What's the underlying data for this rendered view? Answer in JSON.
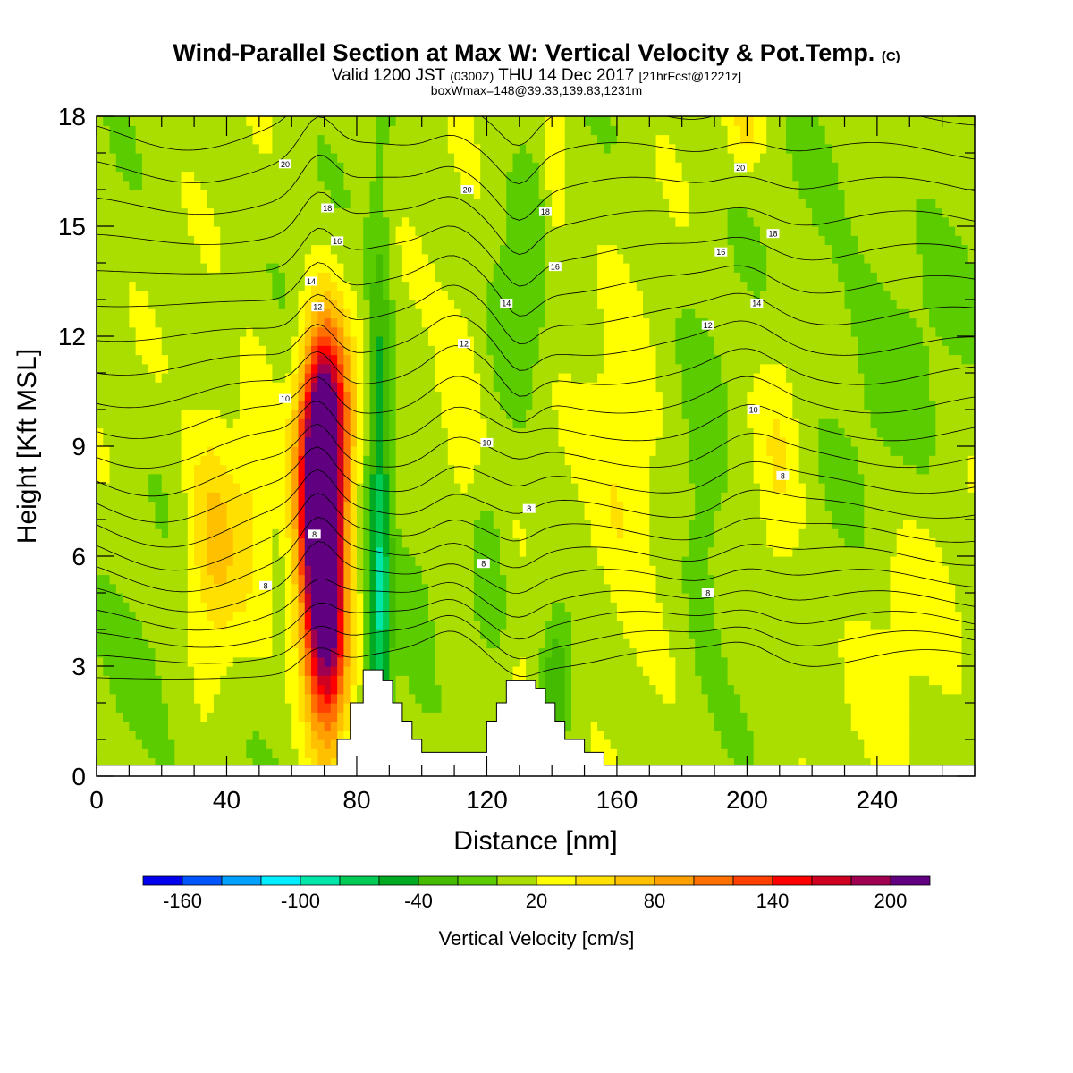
{
  "header": {
    "title_main": "Wind-Parallel Section at Max W: Vertical Velocity & Pot.Temp.",
    "title_copyright": "(C)",
    "valid_prefix": "Valid 1200 JST",
    "valid_utc": "(0300Z)",
    "valid_date": "THU 14 Dec 2017",
    "valid_fcst": "[21hrFcst@1221z]",
    "box_info": "boxWmax=148@39.33,139.83,1231m"
  },
  "chart_data": {
    "type": "heatmap",
    "title": "Wind-Parallel Section at Max W: Vertical Velocity & Pot.Temp.",
    "xlabel": "Distance [nm]",
    "ylabel": "Height [Kft MSL]",
    "xlim": [
      0,
      270
    ],
    "ylim": [
      0,
      18
    ],
    "x_ticks": [
      0,
      40,
      80,
      120,
      160,
      200,
      240
    ],
    "y_ticks": [
      0,
      3,
      6,
      9,
      12,
      15,
      18
    ],
    "colorbar": {
      "title": "Vertical Velocity [cm/s]",
      "tick_labels": [
        "-160",
        "-100",
        "-40",
        "20",
        "80",
        "140",
        "200"
      ],
      "boundaries": [
        -180,
        -160,
        -140,
        -120,
        -100,
        -80,
        -60,
        -40,
        -20,
        0,
        20,
        40,
        60,
        80,
        100,
        120,
        140,
        160,
        180,
        200,
        220
      ],
      "colors": [
        "#0000ee",
        "#0055ff",
        "#00a0ff",
        "#00eeff",
        "#00e6a8",
        "#00cc55",
        "#00aa22",
        "#44bb00",
        "#5acc00",
        "#aade00",
        "#ffff00",
        "#ffe000",
        "#ffc000",
        "#ffa000",
        "#ff7000",
        "#ff4000",
        "#ff0000",
        "#d00020",
        "#a00050",
        "#600080"
      ]
    },
    "background_value": 10,
    "w_features": [
      {
        "x": 69,
        "y": 7.5,
        "sx": 4.5,
        "sy": 2.6,
        "w": 215
      },
      {
        "x": 70,
        "y": 5.0,
        "sx": 5.0,
        "sy": 2.8,
        "w": 120
      },
      {
        "x": 71,
        "y": 10.0,
        "sx": 5.0,
        "sy": 1.8,
        "w": 110
      },
      {
        "x": 72,
        "y": 3.0,
        "sx": 4.0,
        "sy": 1.5,
        "w": 70
      },
      {
        "x": 36,
        "y": 6.5,
        "sx": 6.0,
        "sy": 2.5,
        "w": 55
      },
      {
        "x": 49,
        "y": 8.5,
        "sx": 4.0,
        "sy": 2.5,
        "w": 30
      },
      {
        "x": 87,
        "y": 8.0,
        "sx": 2.5,
        "sy": 5.0,
        "w": -70
      },
      {
        "x": 87,
        "y": 3.0,
        "sx": 2.5,
        "sy": 2.0,
        "w": -40
      },
      {
        "x": 112,
        "y": 10.0,
        "sx": 6.0,
        "sy": 2.5,
        "w": 28
      },
      {
        "x": 131,
        "y": 2.6,
        "sx": 5.0,
        "sy": 1.0,
        "w": 25
      },
      {
        "x": 141,
        "y": 2.6,
        "sx": 3.0,
        "sy": 1.2,
        "w": -50
      },
      {
        "x": 131,
        "y": 13.0,
        "sx": 6.0,
        "sy": 2.0,
        "w": -30
      },
      {
        "x": 141,
        "y": 16.0,
        "sx": 2.5,
        "sy": 2.0,
        "w": 30
      },
      {
        "x": 162,
        "y": 8.0,
        "sx": 8.0,
        "sy": 2.5,
        "w": 35
      },
      {
        "x": 187,
        "y": 7.0,
        "sx": 5.0,
        "sy": 3.0,
        "w": -25
      },
      {
        "x": 210,
        "y": 8.5,
        "sx": 5.0,
        "sy": 3.0,
        "w": 25
      },
      {
        "x": 120,
        "y": 6.0,
        "sx": 4.0,
        "sy": 2.0,
        "w": -30
      },
      {
        "x": 100,
        "y": 4.0,
        "sx": 6.0,
        "sy": 2.0,
        "w": -20
      },
      {
        "x": 20,
        "y": 2.0,
        "sx": 12.0,
        "sy": 2.0,
        "w": -15
      },
      {
        "x": 240,
        "y": 12.0,
        "sx": 20.0,
        "sy": 4.0,
        "w": -15
      },
      {
        "x": 250,
        "y": 4.0,
        "sx": 15.0,
        "sy": 3.0,
        "w": 15
      },
      {
        "x": 200,
        "y": 17.8,
        "sx": 4.0,
        "sy": 0.8,
        "w": 30
      }
    ],
    "terrain": [
      [
        0,
        0.3
      ],
      [
        74,
        0.3
      ],
      [
        74,
        1.0
      ],
      [
        78,
        1.0
      ],
      [
        78,
        2.0
      ],
      [
        82,
        2.0
      ],
      [
        82,
        2.9
      ],
      [
        88,
        2.9
      ],
      [
        88,
        2.6
      ],
      [
        91,
        2.6
      ],
      [
        91,
        2.0
      ],
      [
        94,
        2.0
      ],
      [
        94,
        1.5
      ],
      [
        97,
        1.5
      ],
      [
        97,
        1.0
      ],
      [
        100,
        1.0
      ],
      [
        100,
        0.65
      ],
      [
        120,
        0.65
      ],
      [
        120,
        1.5
      ],
      [
        123,
        1.5
      ],
      [
        123,
        2.0
      ],
      [
        126,
        2.0
      ],
      [
        126,
        2.6
      ],
      [
        135,
        2.6
      ],
      [
        135,
        2.4
      ],
      [
        138,
        2.4
      ],
      [
        138,
        2.0
      ],
      [
        141,
        2.0
      ],
      [
        141,
        1.5
      ],
      [
        144,
        1.5
      ],
      [
        144,
        1.0
      ],
      [
        150,
        1.0
      ],
      [
        150,
        0.65
      ],
      [
        156,
        0.65
      ],
      [
        156,
        0.3
      ],
      [
        270,
        0.3
      ]
    ],
    "theta_contours": [
      {
        "labels": [
          {
            "x": 52,
            "y": 5.2,
            "text": "8"
          },
          {
            "x": 67,
            "y": 6.6,
            "text": "8"
          },
          {
            "x": 119,
            "y": 5.8,
            "text": "8"
          },
          {
            "x": 133,
            "y": 7.3,
            "text": "8"
          },
          {
            "x": 188,
            "y": 5.0,
            "text": "8"
          },
          {
            "x": 211,
            "y": 8.2,
            "text": "8"
          }
        ]
      },
      {
        "labels": [
          {
            "x": 58,
            "y": 10.3,
            "text": "10"
          },
          {
            "x": 120,
            "y": 9.1,
            "text": "10"
          },
          {
            "x": 202,
            "y": 10.0,
            "text": "10"
          }
        ]
      },
      {
        "labels": [
          {
            "x": 68,
            "y": 12.8,
            "text": "12"
          },
          {
            "x": 113,
            "y": 11.8,
            "text": "12"
          },
          {
            "x": 188,
            "y": 12.3,
            "text": "12"
          }
        ]
      },
      {
        "labels": [
          {
            "x": 66,
            "y": 13.5,
            "text": "14"
          },
          {
            "x": 126,
            "y": 12.9,
            "text": "14"
          },
          {
            "x": 203,
            "y": 12.9,
            "text": "14"
          }
        ]
      },
      {
        "labels": [
          {
            "x": 74,
            "y": 14.6,
            "text": "16"
          },
          {
            "x": 141,
            "y": 13.9,
            "text": "16"
          },
          {
            "x": 192,
            "y": 14.3,
            "text": "16"
          }
        ]
      },
      {
        "labels": [
          {
            "x": 71,
            "y": 15.5,
            "text": "18"
          },
          {
            "x": 138,
            "y": 15.4,
            "text": "18"
          },
          {
            "x": 208,
            "y": 14.8,
            "text": "18"
          }
        ]
      },
      {
        "labels": [
          {
            "x": 58,
            "y": 16.7,
            "text": "20"
          },
          {
            "x": 114,
            "y": 16.0,
            "text": "20"
          },
          {
            "x": 198,
            "y": 16.6,
            "text": "20"
          }
        ]
      }
    ]
  }
}
